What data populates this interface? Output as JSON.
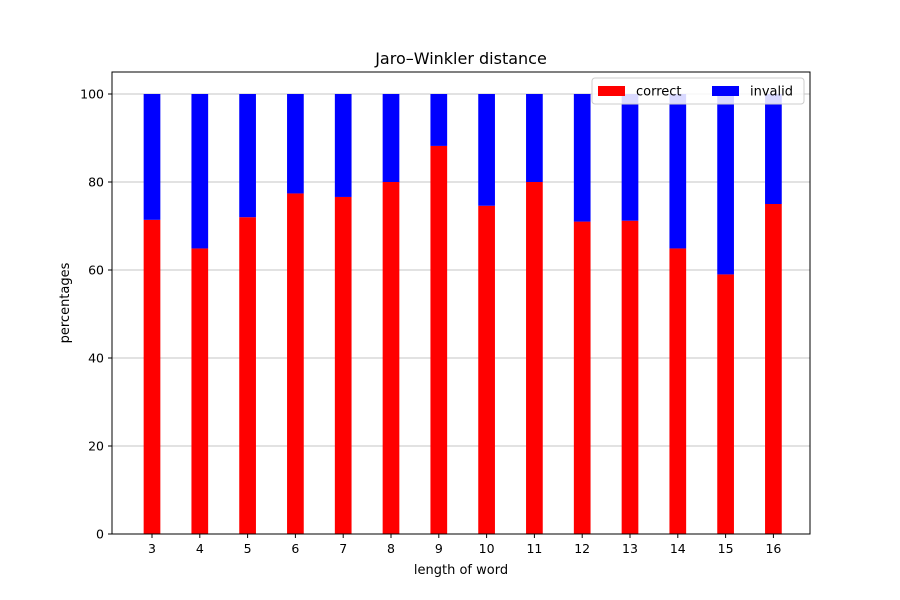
{
  "chart_data": {
    "type": "bar",
    "stacked": true,
    "title": "Jaro–Winkler distance",
    "xlabel": "length of word",
    "ylabel": "percentages",
    "categories": [
      "3",
      "4",
      "5",
      "6",
      "7",
      "8",
      "9",
      "10",
      "11",
      "12",
      "13",
      "14",
      "15",
      "16"
    ],
    "series": [
      {
        "name": "correct",
        "color": "#ff0000",
        "values": [
          71.4,
          64.9,
          72.0,
          77.4,
          76.6,
          80.0,
          88.2,
          74.6,
          80.0,
          71.0,
          71.2,
          64.9,
          59.0,
          75.0
        ]
      },
      {
        "name": "invalid",
        "color": "#0000ff",
        "values": [
          28.6,
          35.1,
          28.0,
          22.6,
          23.4,
          20.0,
          11.8,
          25.4,
          20.0,
          29.0,
          28.8,
          35.1,
          41.0,
          25.0
        ]
      }
    ],
    "yticks": [
      0,
      20,
      40,
      60,
      80,
      100
    ],
    "ylim": [
      0,
      105
    ],
    "grid": "horizontal",
    "legend_position": "top-right"
  }
}
